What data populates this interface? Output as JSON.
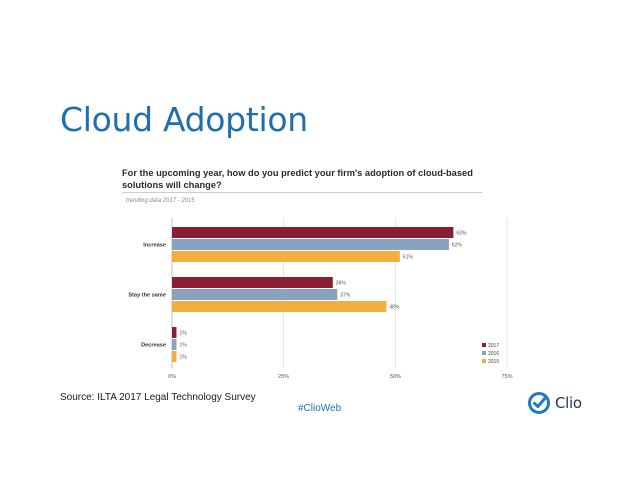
{
  "slide": {
    "title": "Cloud Adoption",
    "source": "Source: ILTA 2017 Legal Technology Survey",
    "hashtag": "#ClioWeb",
    "brand": "Clio"
  },
  "chart_data": {
    "type": "bar",
    "orientation": "horizontal",
    "title": "For the upcoming year, how do you predict your firm's adoption of cloud-based solutions will change?",
    "subtitle": "trending data 2017 - 2015",
    "categories": [
      "Increase",
      "Stay the same",
      "Decrease"
    ],
    "series": [
      {
        "name": "2017",
        "color": "#8a1e32",
        "values": [
          63,
          36,
          1
        ],
        "labels": [
          "63%",
          "36%",
          "1%"
        ]
      },
      {
        "name": "2016",
        "color": "#87a3bf",
        "values": [
          62,
          37,
          1
        ],
        "labels": [
          "62%",
          "37%",
          "1%"
        ]
      },
      {
        "name": "2015",
        "color": "#f2ae3f",
        "values": [
          51,
          48,
          1
        ],
        "labels": [
          "51%",
          "48%",
          "1%"
        ]
      }
    ],
    "xlim": [
      0,
      75
    ],
    "xticks": [
      0,
      25,
      50,
      75
    ],
    "xtick_labels": [
      "0%",
      "25%",
      "50%",
      "75%"
    ],
    "grid": "vertical",
    "legend": "bottom-right"
  },
  "colors": {
    "title": "#1f6fb0",
    "hashtag": "#1f6fb0",
    "grid": "#d6d6d6"
  }
}
